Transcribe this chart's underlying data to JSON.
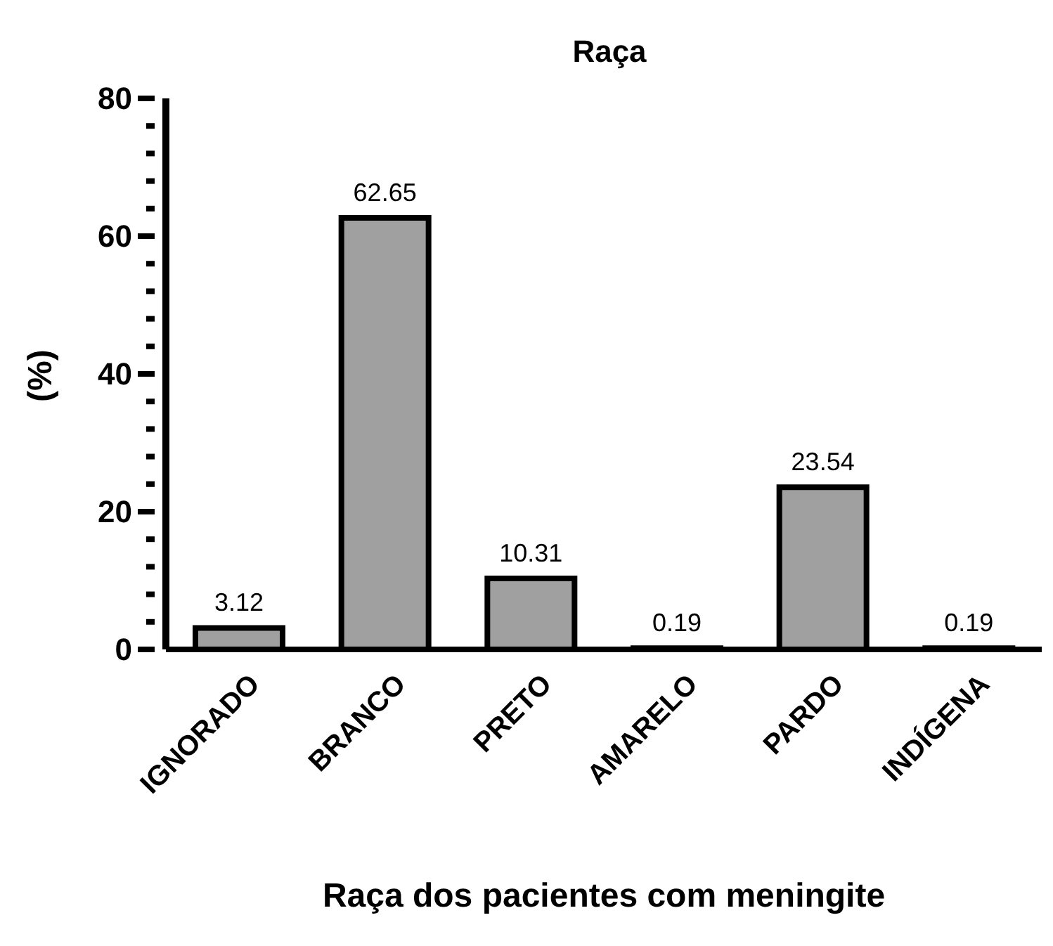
{
  "chart_data": {
    "type": "bar",
    "title": "Raça",
    "xlabel": "Raça dos pacientes com meningite",
    "ylabel": "(%)",
    "categories": [
      "IGNORADO",
      "BRANCO",
      "PRETO",
      "AMARELO",
      "PARDO",
      "INDÍGENA"
    ],
    "values": [
      3.12,
      62.65,
      10.31,
      0.19,
      23.54,
      0.19
    ],
    "color": "#a0a0a0",
    "data_labels": true,
    "ylim": [
      0,
      80
    ],
    "yticks": [
      0,
      {
        "value": 4,
        "label": null
      },
      {
        "value": 8,
        "label": null
      },
      {
        "value": 12,
        "label": null
      },
      {
        "value": 16,
        "label": null
      },
      20,
      {
        "value": 24,
        "label": null
      },
      {
        "value": 28,
        "label": null
      },
      {
        "value": 32,
        "label": null
      },
      {
        "value": 36,
        "label": null
      },
      40,
      {
        "value": 44,
        "label": null
      },
      {
        "value": 48,
        "label": null
      },
      {
        "value": 52,
        "label": null
      },
      {
        "value": 56,
        "label": null
      },
      60,
      {
        "value": 64,
        "label": null
      },
      {
        "value": 68,
        "label": null
      },
      {
        "value": 72,
        "label": null
      },
      {
        "value": 76,
        "label": null
      },
      80
    ],
    "grid": false,
    "legend": false
  }
}
